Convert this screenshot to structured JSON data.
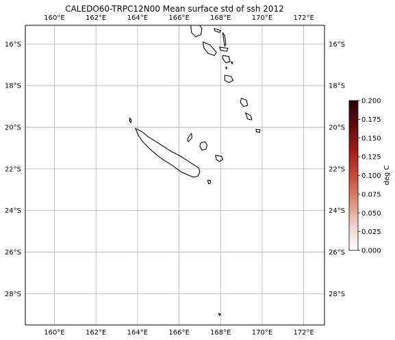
{
  "title": "CALEDO60-TRPC12N00 Mean surface std of ssh 2012",
  "map": {
    "lon_range": [
      158.6,
      173.0
    ],
    "lat_range": [
      -29.5,
      -15.1
    ],
    "lon_ticks": [
      160,
      162,
      164,
      166,
      168,
      170,
      172
    ],
    "lon_tick_labels": [
      "160°E",
      "162°E",
      "164°E",
      "166°E",
      "168°E",
      "170°E",
      "172°E"
    ],
    "lat_ticks": [
      -16,
      -18,
      -20,
      -22,
      -24,
      -26,
      -28
    ],
    "lat_tick_labels": [
      "16°S",
      "18°S",
      "20°S",
      "22°S",
      "24°S",
      "26°S",
      "28°S"
    ],
    "gridlines": true,
    "labels_top": true,
    "labels_left": true,
    "labels_right": true,
    "coastline_color": "#000000",
    "land_fill": "none"
  },
  "colorbar": {
    "label": "deg C",
    "colormap": "Reds-Black",
    "vmin": 0.0,
    "vmax": 0.2,
    "ticks": [
      "0.000",
      "0.025",
      "0.050",
      "0.075",
      "0.100",
      "0.125",
      "0.150",
      "0.175",
      "0.200"
    ],
    "colors": [
      "#ffffff",
      "#f0d5cf",
      "#dc8c7a",
      "#c44a35",
      "#9e1a1a",
      "#5c0a0f",
      "#2b0408"
    ]
  },
  "islands": [
    {
      "name": "grande-terre",
      "coords": [
        [
          163.9,
          -20.05
        ],
        [
          164.2,
          -20.2
        ],
        [
          164.5,
          -20.45
        ],
        [
          164.9,
          -20.7
        ],
        [
          165.3,
          -20.95
        ],
        [
          165.6,
          -21.15
        ],
        [
          166.0,
          -21.35
        ],
        [
          166.4,
          -21.6
        ],
        [
          166.7,
          -21.8
        ],
        [
          166.95,
          -21.95
        ],
        [
          167.0,
          -22.15
        ],
        [
          166.9,
          -22.35
        ],
        [
          166.7,
          -22.4
        ],
        [
          166.45,
          -22.3
        ],
        [
          166.1,
          -22.15
        ],
        [
          165.7,
          -21.85
        ],
        [
          165.3,
          -21.6
        ],
        [
          164.95,
          -21.35
        ],
        [
          164.6,
          -21.05
        ],
        [
          164.25,
          -20.7
        ],
        [
          164.05,
          -20.4
        ],
        [
          163.9,
          -20.05
        ]
      ]
    },
    {
      "name": "belep",
      "coords": [
        [
          163.62,
          -19.55
        ],
        [
          163.7,
          -19.65
        ],
        [
          163.68,
          -19.78
        ],
        [
          163.62,
          -19.7
        ],
        [
          163.62,
          -19.55
        ]
      ]
    },
    {
      "name": "ouvea",
      "coords": [
        [
          166.5,
          -20.4
        ],
        [
          166.6,
          -20.3
        ],
        [
          166.62,
          -20.5
        ],
        [
          166.45,
          -20.7
        ],
        [
          166.4,
          -20.6
        ],
        [
          166.5,
          -20.4
        ]
      ]
    },
    {
      "name": "lifou",
      "coords": [
        [
          167.05,
          -20.75
        ],
        [
          167.25,
          -20.7
        ],
        [
          167.35,
          -20.85
        ],
        [
          167.3,
          -21.05
        ],
        [
          167.1,
          -21.1
        ],
        [
          167.0,
          -20.9
        ],
        [
          167.05,
          -20.75
        ]
      ]
    },
    {
      "name": "mare",
      "coords": [
        [
          167.75,
          -21.35
        ],
        [
          168.05,
          -21.4
        ],
        [
          168.1,
          -21.55
        ],
        [
          167.95,
          -21.65
        ],
        [
          167.8,
          -21.55
        ],
        [
          167.75,
          -21.35
        ]
      ]
    },
    {
      "name": "ile-des-pins",
      "coords": [
        [
          167.38,
          -22.55
        ],
        [
          167.5,
          -22.55
        ],
        [
          167.52,
          -22.68
        ],
        [
          167.42,
          -22.72
        ],
        [
          167.38,
          -22.55
        ]
      ]
    },
    {
      "name": "hunter",
      "coords": [
        [
          167.9,
          -28.95
        ],
        [
          168.0,
          -28.98
        ],
        [
          167.95,
          -29.05
        ],
        [
          167.9,
          -28.95
        ]
      ]
    },
    {
      "name": "espiritu-santo",
      "coords": [
        [
          166.55,
          -15.0
        ],
        [
          166.95,
          -15.05
        ],
        [
          167.1,
          -15.25
        ],
        [
          167.05,
          -15.55
        ],
        [
          166.8,
          -15.65
        ],
        [
          166.6,
          -15.45
        ],
        [
          166.55,
          -15.0
        ]
      ]
    },
    {
      "name": "aoba",
      "coords": [
        [
          167.7,
          -15.25
        ],
        [
          168.0,
          -15.35
        ],
        [
          167.95,
          -15.45
        ],
        [
          167.7,
          -15.35
        ],
        [
          167.7,
          -15.25
        ]
      ]
    },
    {
      "name": "pentecost",
      "coords": [
        [
          168.1,
          -15.45
        ],
        [
          168.2,
          -15.6
        ],
        [
          168.25,
          -16.0
        ],
        [
          168.2,
          -16.1
        ],
        [
          168.15,
          -15.8
        ],
        [
          168.1,
          -15.45
        ]
      ]
    },
    {
      "name": "malakula",
      "coords": [
        [
          167.15,
          -15.9
        ],
        [
          167.5,
          -16.05
        ],
        [
          167.8,
          -16.4
        ],
        [
          167.7,
          -16.55
        ],
        [
          167.4,
          -16.45
        ],
        [
          167.2,
          -16.2
        ],
        [
          167.15,
          -15.9
        ]
      ]
    },
    {
      "name": "ambrym",
      "coords": [
        [
          167.95,
          -16.15
        ],
        [
          168.35,
          -16.2
        ],
        [
          168.3,
          -16.35
        ],
        [
          168.0,
          -16.3
        ],
        [
          167.95,
          -16.15
        ]
      ]
    },
    {
      "name": "paama-epi",
      "coords": [
        [
          168.1,
          -16.55
        ],
        [
          168.4,
          -16.6
        ],
        [
          168.45,
          -16.85
        ],
        [
          168.25,
          -16.9
        ],
        [
          168.1,
          -16.7
        ],
        [
          168.1,
          -16.55
        ]
      ]
    },
    {
      "name": "tongoa",
      "coords": [
        [
          168.5,
          -16.85
        ],
        [
          168.58,
          -16.88
        ],
        [
          168.55,
          -16.95
        ],
        [
          168.5,
          -16.85
        ]
      ]
    },
    {
      "name": "shepherd",
      "coords": [
        [
          168.25,
          -17.1
        ],
        [
          168.3,
          -17.15
        ],
        [
          168.27,
          -17.2
        ],
        [
          168.25,
          -17.1
        ]
      ]
    },
    {
      "name": "efate",
      "coords": [
        [
          168.2,
          -17.5
        ],
        [
          168.5,
          -17.55
        ],
        [
          168.6,
          -17.75
        ],
        [
          168.4,
          -17.85
        ],
        [
          168.2,
          -17.75
        ],
        [
          168.2,
          -17.5
        ]
      ]
    },
    {
      "name": "erromango",
      "coords": [
        [
          169.0,
          -18.6
        ],
        [
          169.25,
          -18.7
        ],
        [
          169.3,
          -18.95
        ],
        [
          169.1,
          -19.0
        ],
        [
          168.95,
          -18.8
        ],
        [
          169.0,
          -18.6
        ]
      ]
    },
    {
      "name": "tanna",
      "coords": [
        [
          169.2,
          -19.3
        ],
        [
          169.45,
          -19.45
        ],
        [
          169.5,
          -19.65
        ],
        [
          169.3,
          -19.6
        ],
        [
          169.2,
          -19.3
        ]
      ]
    },
    {
      "name": "aneityum",
      "coords": [
        [
          169.7,
          -20.1
        ],
        [
          169.9,
          -20.12
        ],
        [
          169.88,
          -20.25
        ],
        [
          169.72,
          -20.22
        ],
        [
          169.7,
          -20.1
        ]
      ]
    }
  ]
}
